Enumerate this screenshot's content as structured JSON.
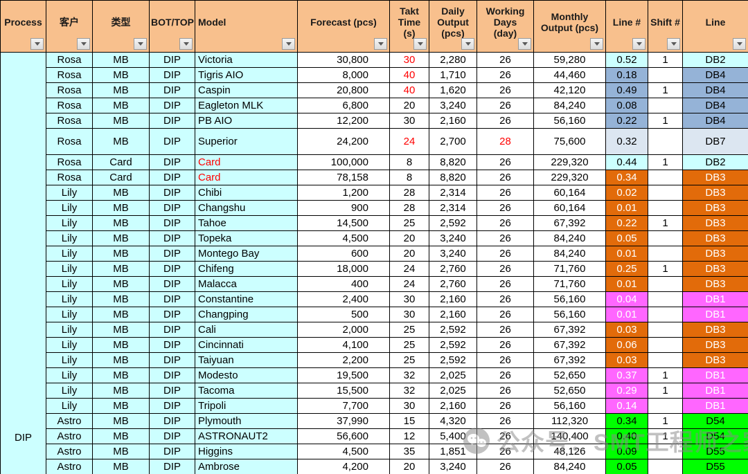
{
  "header": {
    "columns": [
      {
        "label": "Process"
      },
      {
        "label": "客户"
      },
      {
        "label": "类型"
      },
      {
        "label": "BOT/TOP"
      },
      {
        "label": "Model"
      },
      {
        "label": "Forecast  (pcs)"
      },
      {
        "label": "Takt\nTime\n(s)"
      },
      {
        "label": "Daily\nOutput\n(pcs)"
      },
      {
        "label": "Working\nDays\n(day)"
      },
      {
        "label": "Monthly\nOutput  (pcs)"
      },
      {
        "label": "Line #"
      },
      {
        "label": "Shift #"
      },
      {
        "label": "Line"
      }
    ]
  },
  "process_label": "DIP",
  "rows": [
    {
      "c": "Rosa",
      "t": "MB",
      "b": "DIP",
      "m": "Victoria",
      "f": "30,800",
      "tk": "30",
      "tkr": true,
      "d": "2,280",
      "w": "26",
      "mo": "59,280",
      "ln": "0.52",
      "sh": "1",
      "li": "DB2",
      "col": "cyan"
    },
    {
      "c": "Rosa",
      "t": "MB",
      "b": "DIP",
      "m": "Tigris AIO",
      "f": "8,000",
      "tk": "40",
      "tkr": true,
      "d": "1,710",
      "w": "26",
      "mo": "44,460",
      "ln": "0.18",
      "sh": "",
      "li": "DB4",
      "col": "blue"
    },
    {
      "c": "Rosa",
      "t": "MB",
      "b": "DIP",
      "m": "Caspin",
      "f": "20,800",
      "tk": "40",
      "tkr": true,
      "d": "1,620",
      "w": "26",
      "mo": "42,120",
      "ln": "0.49",
      "sh": "1",
      "li": "DB4",
      "col": "blue"
    },
    {
      "c": "Rosa",
      "t": "MB",
      "b": "DIP",
      "m": "Eagleton MLK",
      "f": "6,800",
      "tk": "20",
      "d": "3,240",
      "w": "26",
      "mo": "84,240",
      "ln": "0.08",
      "sh": "",
      "li": "DB4",
      "col": "blue"
    },
    {
      "c": "Rosa",
      "t": "MB",
      "b": "DIP",
      "m": "PB AIO",
      "f": "12,200",
      "tk": "30",
      "d": "2,160",
      "w": "26",
      "mo": "56,160",
      "ln": "0.22",
      "sh": "1",
      "li": "DB4",
      "col": "blue"
    },
    {
      "c": "Rosa",
      "t": "MB",
      "b": "DIP",
      "m": "Superior",
      "f": "24,200",
      "tk": "24",
      "tkr": true,
      "d": "2,700",
      "w": "28",
      "wr": true,
      "mo": "75,600",
      "ln": "0.32",
      "sh": "",
      "li": "DB7",
      "col": "pale",
      "tall": true
    },
    {
      "c": "Rosa",
      "t": "Card",
      "b": "DIP",
      "m": "Card",
      "mr": true,
      "f": "100,000",
      "tk": "8",
      "d": "8,820",
      "w": "26",
      "mo": "229,320",
      "ln": "0.44",
      "sh": "1",
      "li": "DB2",
      "col": "cyan"
    },
    {
      "c": "Rosa",
      "t": "Card",
      "b": "DIP",
      "m": "Card",
      "mr": true,
      "f": "78,158",
      "tk": "8",
      "d": "8,820",
      "w": "26",
      "mo": "229,320",
      "ln": "0.34",
      "sh": "",
      "li": "DB3",
      "col": "orange"
    },
    {
      "c": "Lily",
      "t": "MB",
      "b": "DIP",
      "m": "Chibi",
      "f": "1,200",
      "tk": "28",
      "d": "2,314",
      "w": "26",
      "mo": "60,164",
      "ln": "0.02",
      "sh": "",
      "li": "DB3",
      "col": "orange"
    },
    {
      "c": "Lily",
      "t": "MB",
      "b": "DIP",
      "m": "Changshu",
      "f": "900",
      "tk": "28",
      "d": "2,314",
      "w": "26",
      "mo": "60,164",
      "ln": "0.01",
      "sh": "",
      "li": "DB3",
      "col": "orange"
    },
    {
      "c": "Lily",
      "t": "MB",
      "b": "DIP",
      "m": "Tahoe",
      "f": "14,500",
      "tk": "25",
      "d": "2,592",
      "w": "26",
      "mo": "67,392",
      "ln": "0.22",
      "sh": "1",
      "li": "DB3",
      "col": "orange"
    },
    {
      "c": "Lily",
      "t": "MB",
      "b": "DIP",
      "m": "Topeka",
      "f": "4,500",
      "tk": "20",
      "d": "3,240",
      "w": "26",
      "mo": "84,240",
      "ln": "0.05",
      "sh": "",
      "li": "DB3",
      "col": "orange"
    },
    {
      "c": "Lily",
      "t": "MB",
      "b": "DIP",
      "m": "Montego Bay",
      "f": "600",
      "tk": "20",
      "d": "3,240",
      "w": "26",
      "mo": "84,240",
      "ln": "0.01",
      "sh": "",
      "li": "DB3",
      "col": "orange"
    },
    {
      "c": "Lily",
      "t": "MB",
      "b": "DIP",
      "m": "Chifeng",
      "f": "18,000",
      "tk": "24",
      "d": "2,760",
      "w": "26",
      "mo": "71,760",
      "ln": "0.25",
      "sh": "1",
      "li": "DB3",
      "col": "orange"
    },
    {
      "c": "Lily",
      "t": "MB",
      "b": "DIP",
      "m": "Malacca",
      "f": "400",
      "tk": "24",
      "d": "2,760",
      "w": "26",
      "mo": "71,760",
      "ln": "0.01",
      "sh": "",
      "li": "DB3",
      "col": "orange"
    },
    {
      "c": "Lily",
      "t": "MB",
      "b": "DIP",
      "m": "Constantine",
      "f": "2,400",
      "tk": "30",
      "d": "2,160",
      "w": "26",
      "mo": "56,160",
      "ln": "0.04",
      "sh": "",
      "li": "DB1",
      "col": "magenta"
    },
    {
      "c": "Lily",
      "t": "MB",
      "b": "DIP",
      "m": "Changping",
      "f": "500",
      "tk": "30",
      "d": "2,160",
      "w": "26",
      "mo": "56,160",
      "ln": "0.01",
      "sh": "",
      "li": "DB1",
      "col": "magenta"
    },
    {
      "c": "Lily",
      "t": "MB",
      "b": "DIP",
      "m": "Cali",
      "f": "2,000",
      "tk": "25",
      "d": "2,592",
      "w": "26",
      "mo": "67,392",
      "ln": "0.03",
      "sh": "",
      "li": "DB3",
      "col": "orange"
    },
    {
      "c": "Lily",
      "t": "MB",
      "b": "DIP",
      "m": "Cincinnati",
      "f": "4,100",
      "tk": "25",
      "d": "2,592",
      "w": "26",
      "mo": "67,392",
      "ln": "0.06",
      "sh": "",
      "li": "DB3",
      "col": "orange"
    },
    {
      "c": "Lily",
      "t": "MB",
      "b": "DIP",
      "m": "Taiyuan",
      "f": "2,200",
      "tk": "25",
      "d": "2,592",
      "w": "26",
      "mo": "67,392",
      "ln": "0.03",
      "sh": "",
      "li": "DB3",
      "col": "orange"
    },
    {
      "c": "Lily",
      "t": "MB",
      "b": "DIP",
      "m": "Modesto",
      "f": "19,500",
      "tk": "32",
      "d": "2,025",
      "w": "26",
      "mo": "52,650",
      "ln": "0.37",
      "sh": "1",
      "li": "DB1",
      "col": "magenta"
    },
    {
      "c": "Lily",
      "t": "MB",
      "b": "DIP",
      "m": "Tacoma",
      "f": "15,500",
      "tk": "32",
      "d": "2,025",
      "w": "26",
      "mo": "52,650",
      "ln": "0.29",
      "sh": "1",
      "li": "DB1",
      "col": "magenta"
    },
    {
      "c": "Lily",
      "t": "MB",
      "b": "DIP",
      "m": "Tripoli",
      "f": "7,700",
      "tk": "30",
      "d": "2,160",
      "w": "26",
      "mo": "56,160",
      "ln": "0.14",
      "sh": "",
      "li": "DB1",
      "col": "magenta"
    },
    {
      "c": "Astro",
      "t": "MB",
      "b": "DIP",
      "m": "Plymouth",
      "f": "37,990",
      "tk": "15",
      "d": "4,320",
      "w": "26",
      "mo": "112,320",
      "ln": "0.34",
      "sh": "1",
      "li": "D54",
      "col": "green"
    },
    {
      "c": "Astro",
      "t": "MB",
      "b": "DIP",
      "m": "ASTRONAUT2",
      "f": "56,600",
      "tk": "12",
      "d": "5,400",
      "w": "26",
      "mo": "140,400",
      "ln": "0.40",
      "sh": "1",
      "li": "D54",
      "col": "green",
      "lnt": true
    },
    {
      "c": "Astro",
      "t": "MB",
      "b": "DIP",
      "m": "Higgins",
      "f": "4,500",
      "tk": "35",
      "d": "1,851",
      "w": "26",
      "mo": "48,126",
      "ln": "0.09",
      "sh": "",
      "li": "D55",
      "col": "green",
      "lnt": true
    },
    {
      "c": "Astro",
      "t": "MB",
      "b": "DIP",
      "m": "Ambrose",
      "f": "4,200",
      "tk": "20",
      "d": "3,240",
      "w": "26",
      "mo": "84,240",
      "ln": "0.05",
      "sh": "",
      "li": "D55",
      "col": "green",
      "lnt": true
    }
  ],
  "colors": {
    "header_bg": "#F8C08D",
    "label_bg": "#CCFFFF",
    "red_text": "#FF0000",
    "cyan": {
      "bg": "#CCFFFF",
      "text": "#000000"
    },
    "blue": {
      "bg": "#95B3D7",
      "text": "#000000"
    },
    "pale": {
      "bg": "#DCE6F1",
      "text": "#000000"
    },
    "orange": {
      "bg": "#E26B0A",
      "text": "#FFFFFF"
    },
    "magenta": {
      "bg": "#FF66FF",
      "text": "#FFFFFF"
    },
    "green": {
      "bg": "#00FF00",
      "text": "#000000"
    }
  },
  "watermark": {
    "text": "公众号：SMT工程师之家"
  }
}
